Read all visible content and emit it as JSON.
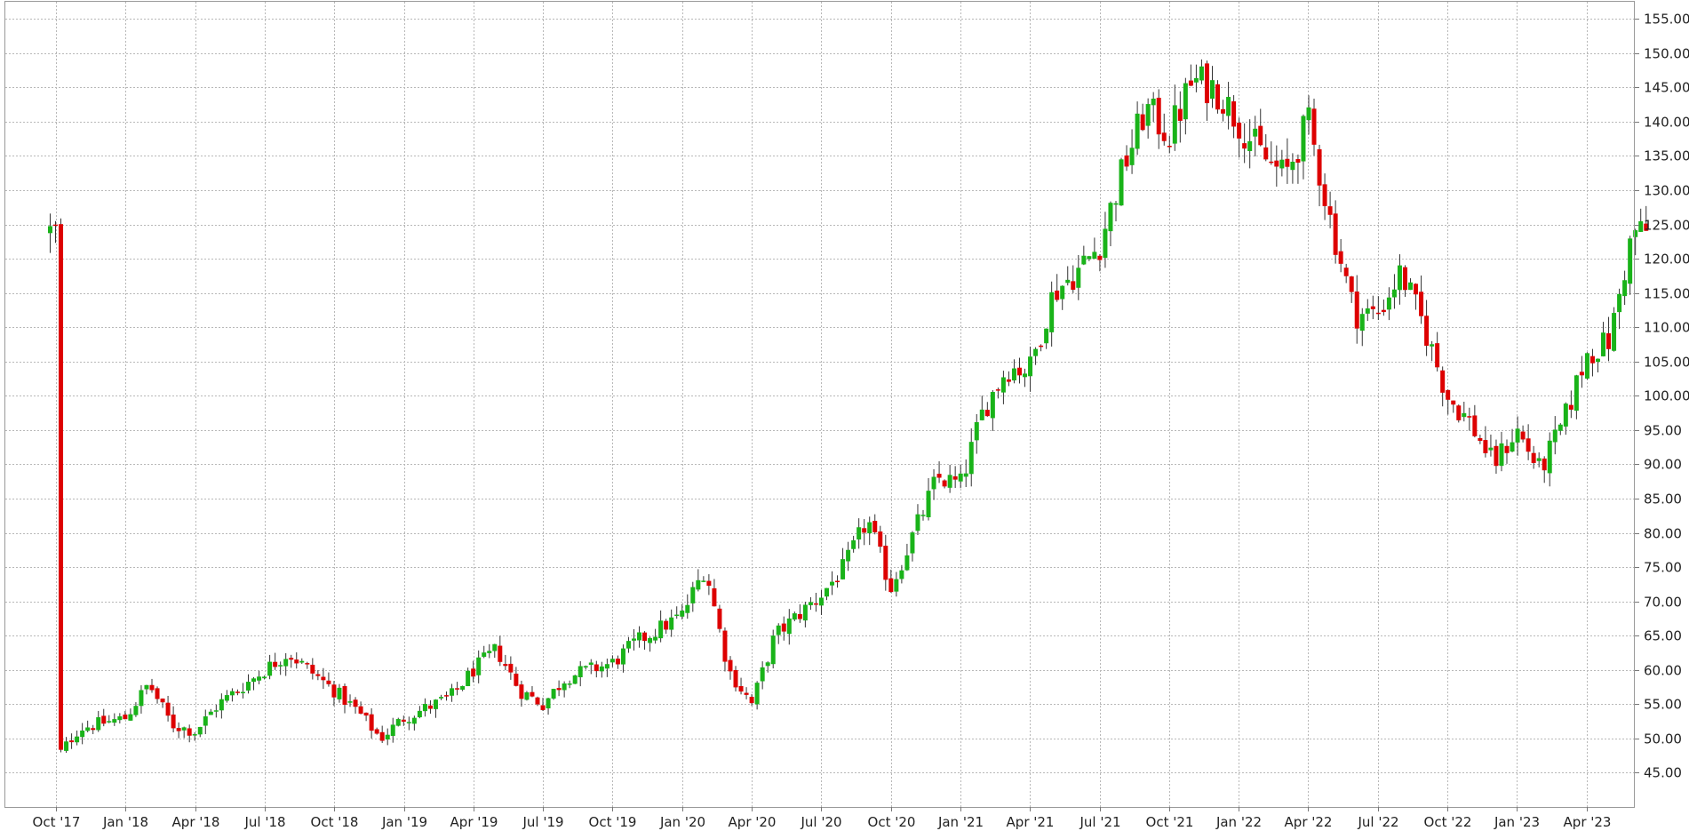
{
  "chart_data": {
    "type": "candlestick",
    "title": "",
    "xlabel": "",
    "ylabel": "",
    "interval": "weekly",
    "ylim": [
      40,
      157.5
    ],
    "grid": true,
    "y_axis_side": "right",
    "colors": {
      "up": "#19b319",
      "down": "#dd0000",
      "wick": "#333333",
      "grid": "#b8b8b8"
    },
    "yticks": [
      "45.00",
      "50.00",
      "55.00",
      "60.00",
      "65.00",
      "70.00",
      "75.00",
      "80.00",
      "85.00",
      "90.00",
      "95.00",
      "100.00",
      "105.00",
      "110.00",
      "115.00",
      "120.00",
      "125.00",
      "130.00",
      "135.00",
      "140.00",
      "145.00",
      "150.00",
      "155.00"
    ],
    "xticks": [
      "Oct '17",
      "Jan '18",
      "Apr '18",
      "Jul '18",
      "Oct '18",
      "Jan '19",
      "Apr '19",
      "Jul '19",
      "Oct '19",
      "Jan '20",
      "Apr '20",
      "Jul '20",
      "Oct '20",
      "Jan '21",
      "Apr '21",
      "Jul '21",
      "Oct '21",
      "Jan '22",
      "Apr '22",
      "Jul '22",
      "Oct '22",
      "Jan '23",
      "Apr '23"
    ],
    "anchors": [
      [
        "Oct '17",
        47
      ],
      [
        "Nov '17",
        51.5
      ],
      [
        "Jan '18",
        53
      ],
      [
        "Feb '18",
        58
      ],
      [
        "Mar '18",
        52
      ],
      [
        "Apr '18",
        51
      ],
      [
        "May '18",
        55
      ],
      [
        "Jul '18",
        60
      ],
      [
        "Aug '18",
        62.5
      ],
      [
        "Oct '18",
        57
      ],
      [
        "Nov '18",
        54
      ],
      [
        "Dec '18",
        50
      ],
      [
        "Jan '19",
        53
      ],
      [
        "Mar '19",
        56
      ],
      [
        "Apr '19",
        60
      ],
      [
        "May '19",
        63
      ],
      [
        "Jun '19",
        57
      ],
      [
        "Jul '19",
        55
      ],
      [
        "Aug '19",
        59
      ],
      [
        "Oct '19",
        61
      ],
      [
        "Nov '19",
        64
      ],
      [
        "Jan '20",
        68
      ],
      [
        "Feb '20",
        75
      ],
      [
        "Mar '20",
        60
      ],
      [
        "Apr '20",
        55
      ],
      [
        "May '20",
        65
      ],
      [
        "Jul '20",
        71
      ],
      [
        "Aug '20",
        75
      ],
      [
        "Sep '20",
        82
      ],
      [
        "Oct '20",
        72
      ],
      [
        "Nov '20",
        80
      ],
      [
        "Dec '20",
        88
      ],
      [
        "Jan '21",
        87
      ],
      [
        "Feb '21",
        98
      ],
      [
        "Mar '21",
        104
      ],
      [
        "Apr '21",
        104
      ],
      [
        "May '21",
        115
      ],
      [
        "Jun '21",
        118
      ],
      [
        "Jul '21",
        122
      ],
      [
        "Aug '21",
        133
      ],
      [
        "Sep '21",
        142
      ],
      [
        "Oct '21",
        138
      ],
      [
        "Nov '21",
        146
      ],
      [
        "Dec '21",
        145
      ],
      [
        "Jan '22",
        140
      ],
      [
        "Feb '22",
        135
      ],
      [
        "Mar '22",
        132
      ],
      [
        "Apr '22",
        140
      ],
      [
        "May '22",
        125
      ],
      [
        "Jun '22",
        112
      ],
      [
        "Jul '22",
        112
      ],
      [
        "Aug '22",
        118
      ],
      [
        "Sep '22",
        110
      ],
      [
        "Oct '22",
        100
      ],
      [
        "Nov '22",
        96
      ],
      [
        "Dec '22",
        90
      ],
      [
        "Jan '23",
        95
      ],
      [
        "Feb '23",
        89
      ],
      [
        "Mar '23",
        96
      ],
      [
        "Apr '23",
        106
      ],
      [
        "May '23",
        108
      ],
      [
        "Jun '23",
        124
      ]
    ]
  }
}
